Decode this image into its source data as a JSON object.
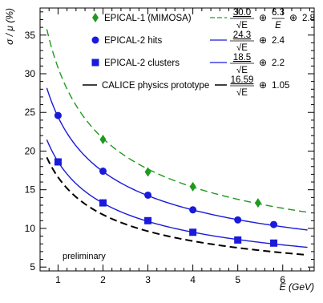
{
  "chart_data": {
    "type": "scatter",
    "title": "",
    "xlabel": "E (GeV)",
    "ylabel": "σ / μ (%)",
    "xlim": [
      0.6,
      6.7
    ],
    "ylim": [
      4.5,
      38.5
    ],
    "xticks": [
      1,
      2,
      3,
      4,
      5,
      6
    ],
    "yticks": [
      5,
      10,
      15,
      20,
      25,
      30,
      35
    ],
    "grid": false,
    "legend_position": "top",
    "annotation": "preliminary",
    "series": [
      {
        "name": "EPICAL-1 (MIMOSA)",
        "marker": "diamond",
        "color": "#1e9a1e",
        "line_style": "dashed",
        "fit": {
          "a": 30.0,
          "b": 6.3,
          "c": 2.8
        },
        "formula": {
          "num1": "30.0",
          "num2": "6.3",
          "const": "2.8"
        },
        "x": [
          2.0,
          3.0,
          4.0,
          5.45
        ],
        "y": [
          21.5,
          17.3,
          15.4,
          13.3
        ]
      },
      {
        "name": "EPICAL-2 hits",
        "marker": "circle",
        "color": "#1a1adb",
        "line_style": "solid",
        "fit": {
          "a": 24.3,
          "b": 0,
          "c": 2.4
        },
        "formula": {
          "num1": "24.3",
          "const": "2.4"
        },
        "x": [
          1.0,
          2.0,
          3.0,
          4.0,
          5.0,
          5.8
        ],
        "y": [
          24.6,
          17.4,
          14.3,
          12.4,
          11.1,
          10.5
        ]
      },
      {
        "name": "EPICAL-2 clusters",
        "marker": "square",
        "color": "#1a1adb",
        "line_style": "solid",
        "fit": {
          "a": 18.5,
          "b": 0,
          "c": 2.2
        },
        "formula": {
          "num1": "18.5",
          "const": "2.2"
        },
        "x": [
          1.0,
          2.0,
          3.0,
          4.0,
          5.0,
          5.8
        ],
        "y": [
          18.6,
          13.3,
          11.0,
          9.5,
          8.5,
          8.1
        ]
      },
      {
        "name": "CALICE physics prototype",
        "marker": "none",
        "color": "#000000",
        "line_style": "dashed",
        "fit": {
          "a": 16.59,
          "b": 0,
          "c": 1.05
        },
        "formula": {
          "num1": "16.59",
          "const": "1.05"
        },
        "x": [],
        "y": []
      }
    ],
    "formula_symbols": {
      "sqrt_e": "√E",
      "e": "E",
      "oplus": "⊕"
    }
  }
}
